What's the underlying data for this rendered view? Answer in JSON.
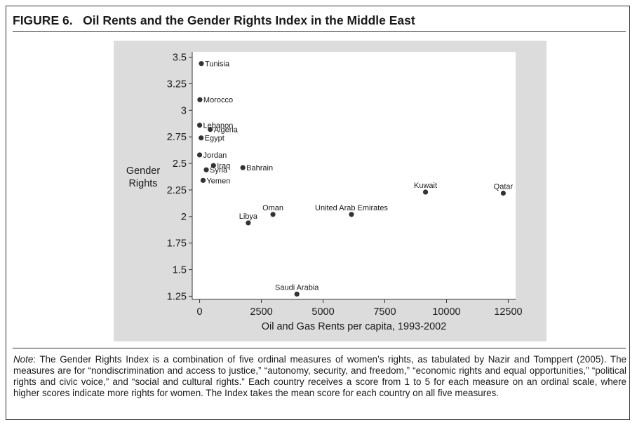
{
  "figure": {
    "label": "FIGURE 6.",
    "title": "Oil Rents and the Gender Rights Index in the Middle East"
  },
  "note": {
    "lead": "Note",
    "text": ": The Gender Rights Index is a combination of five ordinal measures of women’s rights, as tabulated by Nazir and Tomppert (2005). The measures are for “nondiscrimination and access to justice,” “autonomy, security, and freedom,” “economic rights and equal opportunities,” “political rights and civic voice,” and “social and cultural rights.” Each country receives a score from 1 to 5 for each measure on an ordinal scale, where higher scores indicate more rights for women. The Index takes the mean score for each country on all five measures."
  },
  "chart_data": {
    "type": "scatter",
    "title": "",
    "xlabel": "Oil and Gas Rents per capita, 1993-2002",
    "ylabel": "Gender Rights",
    "xlim": [
      -300,
      12800
    ],
    "ylim": [
      1.22,
      3.55
    ],
    "xticks": [
      0,
      2500,
      5000,
      7500,
      10000,
      12500
    ],
    "yticks": [
      1.25,
      1.5,
      1.75,
      2,
      2.25,
      2.5,
      2.75,
      3,
      3.25,
      3.5
    ],
    "ytick_labels": [
      "1.25",
      "1.5",
      "1.75",
      "2",
      "2.25",
      "2.5",
      "2.75",
      "3",
      "3.25",
      "3.5"
    ],
    "grid": false,
    "legend": "none",
    "marker_color": "#333333",
    "points": [
      {
        "label": "Tunisia",
        "x": 70,
        "y": 3.44,
        "pos": "right"
      },
      {
        "label": "Morocco",
        "x": 10,
        "y": 3.1,
        "pos": "right"
      },
      {
        "label": "Lebanon",
        "x": 0,
        "y": 2.86,
        "pos": "right"
      },
      {
        "label": "Algeria",
        "x": 430,
        "y": 2.82,
        "pos": "right"
      },
      {
        "label": "Egypt",
        "x": 60,
        "y": 2.74,
        "pos": "right"
      },
      {
        "label": "Jordan",
        "x": 0,
        "y": 2.58,
        "pos": "right"
      },
      {
        "label": "Iraq",
        "x": 560,
        "y": 2.48,
        "pos": "right"
      },
      {
        "label": "Syria",
        "x": 270,
        "y": 2.44,
        "pos": "right"
      },
      {
        "label": "Bahrain",
        "x": 1750,
        "y": 2.46,
        "pos": "right"
      },
      {
        "label": "Yemen",
        "x": 140,
        "y": 2.34,
        "pos": "right"
      },
      {
        "label": "Kuwait",
        "x": 9150,
        "y": 2.23,
        "pos": "above"
      },
      {
        "label": "Qatar",
        "x": 12300,
        "y": 2.22,
        "pos": "above"
      },
      {
        "label": "Oman",
        "x": 2970,
        "y": 2.02,
        "pos": "above"
      },
      {
        "label": "United Arab Emirates",
        "x": 6150,
        "y": 2.02,
        "pos": "above"
      },
      {
        "label": "Libya",
        "x": 1970,
        "y": 1.94,
        "pos": "above"
      },
      {
        "label": "Saudi Arabia",
        "x": 3940,
        "y": 1.27,
        "pos": "above"
      }
    ]
  }
}
